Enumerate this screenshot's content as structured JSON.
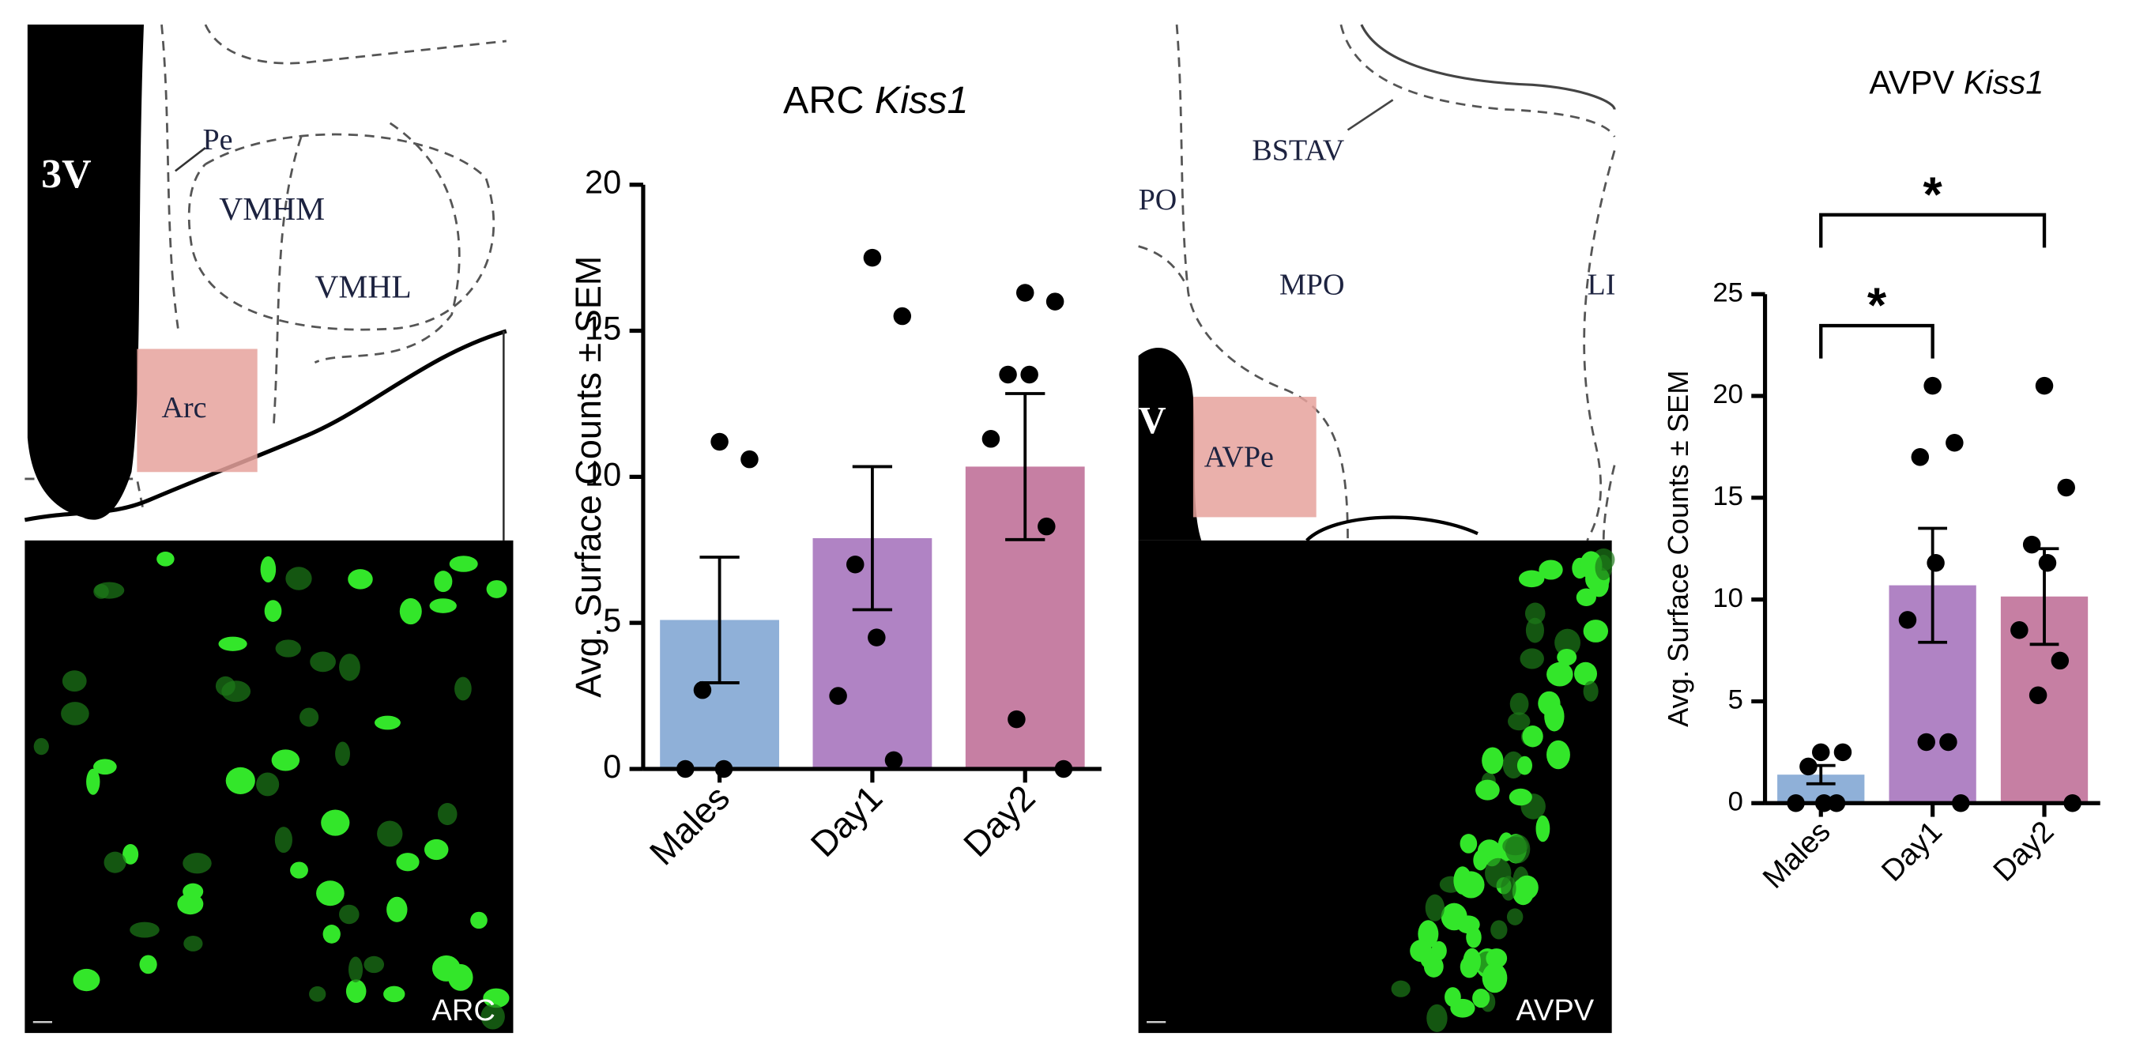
{
  "chart_data": [
    {
      "type": "bar",
      "title_parts": [
        "ARC",
        "Kiss1"
      ],
      "y_label": "Avg. Surface Counts ± SEM",
      "categories": [
        "Males",
        "Day1",
        "Day2"
      ],
      "values": [
        5.1,
        7.9,
        10.35
      ],
      "errors": [
        2.15,
        2.45,
        2.5
      ],
      "colors": [
        "#8fb0d8",
        "#b083c4",
        "#c67fa3"
      ],
      "points": [
        [
          11.2,
          10.6,
          2.7,
          0,
          0
        ],
        [
          17.5,
          15.5,
          7.0,
          4.5,
          2.5,
          0.3
        ],
        [
          16.3,
          16.0,
          13.5,
          13.5,
          11.3,
          8.3,
          1.7,
          0
        ]
      ],
      "ylim": [
        0,
        20
      ],
      "yticks": [
        0,
        5,
        10,
        15,
        20
      ]
    },
    {
      "type": "bar",
      "title_parts": [
        "AVPV",
        "Kiss1"
      ],
      "y_label": "Avg. Surface Counts ± SEM",
      "categories": [
        "Males",
        "Day1",
        "Day2"
      ],
      "values": [
        1.4,
        10.7,
        10.15
      ],
      "errors": [
        0.45,
        2.8,
        2.35
      ],
      "colors": [
        "#8fb0d8",
        "#b083c4",
        "#c67fa3"
      ],
      "points": [
        [
          2.5,
          2.5,
          1.8,
          0,
          0,
          0
        ],
        [
          20.5,
          17.7,
          17.0,
          11.8,
          9.0,
          3.0,
          3.0,
          0
        ],
        [
          20.5,
          15.5,
          12.7,
          11.8,
          8.5,
          7.0,
          5.3,
          0
        ]
      ],
      "ylim": [
        0,
        25
      ],
      "yticks": [
        0,
        5,
        10,
        15,
        20,
        25
      ],
      "significance": [
        {
          "from": 0,
          "to": 1,
          "label": "*"
        },
        {
          "from": 0,
          "to": 2,
          "label": "*"
        }
      ]
    }
  ],
  "atlas": {
    "arc": {
      "labels": [
        "3V",
        "Pe",
        "VMHM",
        "VMHL",
        "Arc"
      ]
    },
    "avpv": {
      "labels": [
        "BSTAV",
        "PO",
        "MPO",
        "LI",
        "AVPe",
        "V"
      ]
    }
  },
  "micrographs": [
    "ARC",
    "AVPV"
  ]
}
